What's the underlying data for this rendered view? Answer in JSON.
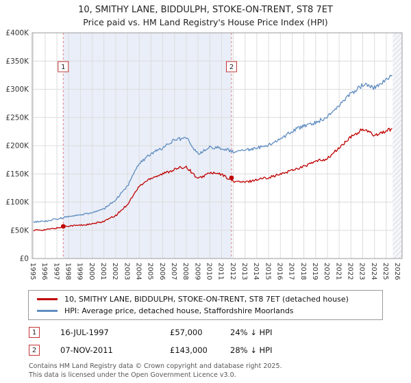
{
  "chart_data": {
    "type": "line",
    "title": "10, SMITHY LANE, BIDDULPH, STOKE-ON-TRENT, ST8 7ET",
    "subtitle": "Price paid vs. HM Land Registry's House Price Index (HPI)",
    "values_unit": "GBP thousands",
    "x_range": [
      1994.9,
      2026.35
    ],
    "ylim": [
      0,
      400
    ],
    "grid": true,
    "legend_position": "bottom",
    "yticks": [
      0,
      50,
      100,
      150,
      200,
      250,
      300,
      350,
      400
    ],
    "ytick_labels": [
      "£0",
      "£50K",
      "£100K",
      "£150K",
      "£200K",
      "£250K",
      "£300K",
      "£350K",
      "£400K"
    ],
    "xticks": [
      1995,
      1996,
      1997,
      1998,
      1999,
      2000,
      2001,
      2002,
      2003,
      2004,
      2005,
      2006,
      2007,
      2008,
      2009,
      2010,
      2011,
      2012,
      2013,
      2014,
      2015,
      2016,
      2017,
      2018,
      2019,
      2020,
      2021,
      2022,
      2023,
      2024,
      2025,
      2026
    ],
    "anchors_x": [
      1995,
      1996,
      1997,
      1998,
      1999,
      2000,
      2001,
      2002,
      2003,
      2004,
      2005,
      2006,
      2007,
      2008,
      2009,
      2010,
      2011,
      2012,
      2013,
      2014,
      2015,
      2016,
      2017,
      2018,
      2019,
      2020,
      2021,
      2022,
      2023,
      2024,
      2025,
      2025.5
    ],
    "series": [
      {
        "name": "10, SMITHY LANE, BIDDULPH, STOKE-ON-TRENT, ST8 7ET (detached house)",
        "color": "#c00000",
        "values": [
          50,
          51,
          54,
          58,
          59,
          61,
          66,
          76,
          96,
          128,
          143,
          150,
          158,
          163,
          141,
          152,
          149,
          137,
          135,
          140,
          144,
          149,
          157,
          163,
          172,
          177,
          196,
          215,
          229,
          219,
          226,
          230
        ]
      },
      {
        "name": "HPI: Average price, detached house, Staffordshire Moorlands",
        "color": "#5f8cc0",
        "values": [
          65,
          66,
          70,
          74,
          77,
          81,
          88,
          104,
          128,
          168,
          186,
          196,
          210,
          214,
          185,
          197,
          196,
          189,
          192,
          196,
          201,
          211,
          226,
          235,
          241,
          251,
          272,
          292,
          308,
          303,
          318,
          325
        ]
      }
    ],
    "sales": [
      {
        "n": "1",
        "x": 1997.54,
        "value": 57
      },
      {
        "n": "2",
        "x": 2011.85,
        "value": 143
      }
    ],
    "marker_label_y": 340,
    "shaded_region": [
      1997.54,
      2011.85
    ],
    "hatched_region": [
      2025.55,
      2026.35
    ],
    "colors": {
      "shaded_region": "#e9eef8",
      "grid": "#dcdcdc",
      "border": "#999999",
      "hatch": "#c9ced8",
      "dashed_line": "#d98080",
      "sale_marker": "#c00000",
      "box_border": "#c23434",
      "tick_text": "#333333"
    }
  },
  "transactions": [
    {
      "n": "1",
      "date": "16-JUL-1997",
      "price": "£57,000",
      "delta": "24% ↓ HPI"
    },
    {
      "n": "2",
      "date": "07-NOV-2011",
      "price": "£143,000",
      "delta": "28% ↓ HPI"
    }
  ],
  "footer": {
    "line1": "Contains HM Land Registry data © Crown copyright and database right 2025.",
    "line2": "This data is licensed under the Open Government Licence v3.0."
  }
}
